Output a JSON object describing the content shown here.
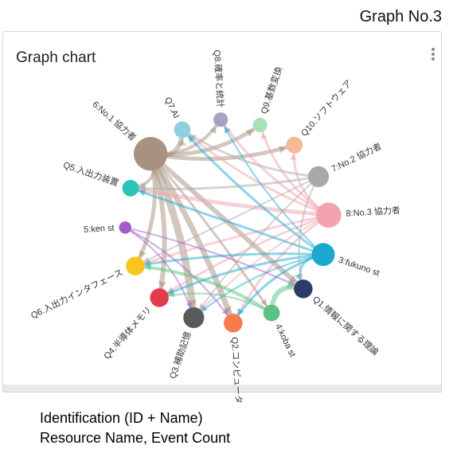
{
  "header": {
    "graph_number": "Graph No.3"
  },
  "card": {
    "title": "Graph chart",
    "menu_icon": "kebab-vertical-icon"
  },
  "caption": {
    "line1": "Identification (ID + Name)",
    "line2": "Resource Name, Event Count"
  },
  "graph": {
    "nodes": [
      {
        "id": "q7",
        "label": "Q7.AI",
        "color": "#8fd0e0",
        "weight": 2
      },
      {
        "id": "q8",
        "label": "Q8.確率と統計",
        "color": "#a3a3c2",
        "weight": 1.5
      },
      {
        "id": "q9",
        "label": "Q9.基数変換",
        "color": "#a8e0b8",
        "weight": 1.5
      },
      {
        "id": "q10",
        "label": "Q10.ソフトウェア",
        "color": "#f5b998",
        "weight": 2
      },
      {
        "id": "n7",
        "label": "7:No.2 協力者",
        "color": "#a9a9a9",
        "weight": 3
      },
      {
        "id": "n8",
        "label": "8:No.3 協力者",
        "color": "#f2a3ad",
        "weight": 4
      },
      {
        "id": "n3",
        "label": "3:fukuno st",
        "color": "#1ba9d0",
        "weight": 3.5
      },
      {
        "id": "q1",
        "label": "Q1.情報に関する理論",
        "color": "#2e3a6a",
        "weight": 2.5
      },
      {
        "id": "n4",
        "label": "4:koba st",
        "color": "#5ac283",
        "weight": 2
      },
      {
        "id": "q2",
        "label": "Q2.コンピュータ",
        "color": "#f57b4d",
        "weight": 2.5
      },
      {
        "id": "q3",
        "label": "Q3.補助記憶",
        "color": "#5a5a5a",
        "weight": 3
      },
      {
        "id": "q4",
        "label": "Q4.半導体メモリ",
        "color": "#e23b4a",
        "weight": 2.5
      },
      {
        "id": "q6",
        "label": "Q6.入出力インタフェース",
        "color": "#f8c51c",
        "weight": 2.5
      },
      {
        "id": "n5",
        "label": "5:ken st",
        "color": "#a05cc8",
        "weight": 1
      },
      {
        "id": "q5",
        "label": "Q5.入出力装置",
        "color": "#2bc4b6",
        "weight": 2
      },
      {
        "id": "n6",
        "label": "6:No.1 協力者",
        "color": "#a8927f",
        "weight": 6
      }
    ],
    "edges": [
      {
        "from": "n6",
        "to": "q3",
        "w": 9
      },
      {
        "from": "n6",
        "to": "q2",
        "w": 7
      },
      {
        "from": "n6",
        "to": "q4",
        "w": 6
      },
      {
        "from": "n6",
        "to": "q6",
        "w": 5
      },
      {
        "from": "n6",
        "to": "q5",
        "w": 4
      },
      {
        "from": "n6",
        "to": "q7",
        "w": 6
      },
      {
        "from": "n6",
        "to": "q8",
        "w": 4
      },
      {
        "from": "n6",
        "to": "q9",
        "w": 5
      },
      {
        "from": "n6",
        "to": "q10",
        "w": 5
      },
      {
        "from": "n6",
        "to": "q1",
        "w": 6
      },
      {
        "from": "n6",
        "to": "n4",
        "w": 3
      },
      {
        "from": "n8",
        "to": "q5",
        "w": 5
      },
      {
        "from": "n8",
        "to": "q6",
        "w": 3
      },
      {
        "from": "n8",
        "to": "q4",
        "w": 3
      },
      {
        "from": "n8",
        "to": "q7",
        "w": 3
      },
      {
        "from": "n8",
        "to": "q8",
        "w": 3
      },
      {
        "from": "n8",
        "to": "q9",
        "w": 3
      },
      {
        "from": "n8",
        "to": "q10",
        "w": 3
      },
      {
        "from": "n8",
        "to": "q2",
        "w": 3
      },
      {
        "from": "n8",
        "to": "q3",
        "w": 2
      },
      {
        "from": "n3",
        "to": "q5",
        "w": 3
      },
      {
        "from": "n3",
        "to": "q6",
        "w": 3
      },
      {
        "from": "n3",
        "to": "q7",
        "w": 3
      },
      {
        "from": "n3",
        "to": "q8",
        "w": 2
      },
      {
        "from": "n3",
        "to": "q4",
        "w": 3
      },
      {
        "from": "n3",
        "to": "q3",
        "w": 2
      },
      {
        "from": "n3",
        "to": "q2",
        "w": 3
      },
      {
        "from": "n3",
        "to": "q1",
        "w": 3
      },
      {
        "from": "n7",
        "to": "q7",
        "w": 3
      },
      {
        "from": "n7",
        "to": "q5",
        "w": 3
      },
      {
        "from": "n7",
        "to": "q6",
        "w": 2
      },
      {
        "from": "n7",
        "to": "q1",
        "w": 2
      },
      {
        "from": "n7",
        "to": "q3",
        "w": 2
      },
      {
        "from": "n5",
        "to": "q1",
        "w": 2
      },
      {
        "from": "n5",
        "to": "q2",
        "w": 2
      },
      {
        "from": "n5",
        "to": "q3",
        "w": 2
      },
      {
        "from": "n4",
        "to": "q6",
        "w": 4
      },
      {
        "from": "n4",
        "to": "q4",
        "w": 2
      },
      {
        "from": "n4",
        "to": "q1",
        "w": 6
      }
    ]
  }
}
